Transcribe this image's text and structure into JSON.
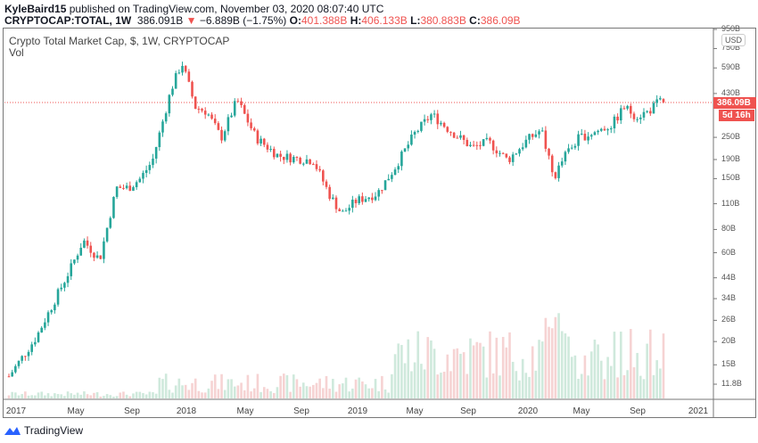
{
  "header": {
    "author": "KyleBaird15",
    "published": "published on TradingView.com, November 03, 2020 08:07:40 UTC",
    "symbol": "CRYPTOCAP:TOTAL, 1W",
    "last": "386.091B",
    "change": "−6.889B (−1.75%)",
    "o_label": "O:",
    "o": "401.388B",
    "h_label": "H:",
    "h": "406.133B",
    "l_label": "L:",
    "l": "380.883B",
    "c_label": "C:",
    "c": "386.09B"
  },
  "chart": {
    "title": "Crypto Total Market Cap, $, 1W, CRYPTOCAP",
    "volume_label": "Vol",
    "currency": "USD",
    "price_tag": "386.09B",
    "countdown": "5d 16h"
  },
  "footer": {
    "brand": "TradingView"
  },
  "colors": {
    "up": "#26a69a",
    "down": "#ef5350",
    "up_vol": "#cfe9dc",
    "down_vol": "#f6d3d3"
  },
  "chart_data": {
    "type": "candlestick",
    "scale": "log",
    "interval": "1W",
    "grid": false,
    "y_ticks": [
      "950B",
      "750B",
      "590B",
      "430B",
      "250B",
      "190B",
      "150B",
      "110B",
      "80B",
      "60B",
      "44B",
      "34B",
      "26B",
      "20B",
      "15B",
      "11.8B"
    ],
    "x_ticks": [
      "2017",
      "May",
      "Sep",
      "2018",
      "May",
      "Sep",
      "2019",
      "May",
      "Sep",
      "2020",
      "May",
      "Sep",
      "2021"
    ],
    "close_approx_B": [
      [
        "2017-01-02",
        13
      ],
      [
        "2017-03-01",
        21
      ],
      [
        "2017-05-15",
        50
      ],
      [
        "2017-06-10",
        70
      ],
      [
        "2017-07-15",
        55
      ],
      [
        "2017-08-20",
        134
      ],
      [
        "2017-09-15",
        134
      ],
      [
        "2017-10-10",
        150
      ],
      [
        "2017-11-05",
        187
      ],
      [
        "2017-12-15",
        453
      ],
      [
        "2018-01-07",
        631
      ],
      [
        "2018-02-05",
        363
      ],
      [
        "2018-03-01",
        344
      ],
      [
        "2018-04-01",
        248
      ],
      [
        "2018-05-05",
        397
      ],
      [
        "2018-06-15",
        248
      ],
      [
        "2018-08-01",
        199
      ],
      [
        "2018-09-10",
        192
      ],
      [
        "2018-10-15",
        188
      ],
      [
        "2018-11-20",
        121
      ],
      [
        "2018-12-15",
        97
      ],
      [
        "2019-01-15",
        114
      ],
      [
        "2019-03-01",
        125
      ],
      [
        "2019-04-05",
        168
      ],
      [
        "2019-05-20",
        262
      ],
      [
        "2019-06-25",
        332
      ],
      [
        "2019-08-01",
        275
      ],
      [
        "2019-09-20",
        220
      ],
      [
        "2019-10-25",
        236
      ],
      [
        "2019-12-05",
        188
      ],
      [
        "2020-01-15",
        241
      ],
      [
        "2020-02-15",
        275
      ],
      [
        "2020-03-12",
        150
      ],
      [
        "2020-04-05",
        199
      ],
      [
        "2020-05-05",
        248
      ],
      [
        "2020-06-10",
        268
      ],
      [
        "2020-07-15",
        292
      ],
      [
        "2020-08-10",
        363
      ],
      [
        "2020-09-05",
        325
      ],
      [
        "2020-10-01",
        344
      ],
      [
        "2020-10-25",
        393
      ],
      [
        "2020-11-02",
        386.09
      ]
    ],
    "last_candle": {
      "open": 401.388,
      "high": 406.133,
      "low": 380.883,
      "close": 386.09
    }
  }
}
